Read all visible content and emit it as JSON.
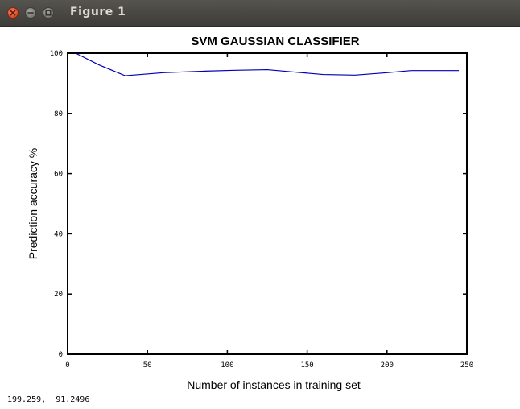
{
  "window": {
    "title": "Figure 1",
    "controls": [
      "close-icon",
      "minimize-icon",
      "maximize-icon"
    ]
  },
  "status": {
    "coordinates": "199.259,  91.2496"
  },
  "colors": {
    "titlebar": "#3d3c38",
    "close_button": "#dd4a22",
    "line": "#0000b4"
  },
  "chart_data": {
    "type": "line",
    "title": "SVM GAUSSIAN CLASSIFIER",
    "xlabel": "Number of instances in training set",
    "ylabel": "Prediction accuracy %",
    "xlim": [
      0,
      250
    ],
    "ylim": [
      0,
      100
    ],
    "xticks": [
      0,
      50,
      100,
      150,
      200,
      250
    ],
    "yticks": [
      0,
      20,
      40,
      60,
      80,
      100
    ],
    "xtick_labels": [
      "0",
      "50",
      "100",
      "150",
      "200",
      "250"
    ],
    "ytick_labels": [
      "0",
      "20",
      "40",
      "60",
      "80",
      "100"
    ],
    "grid": false,
    "series": [
      {
        "x": [
          5,
          20,
          36,
          60,
          85,
          105,
          125,
          140,
          160,
          180,
          200,
          215,
          245
        ],
        "y": [
          100,
          96,
          92.5,
          93.5,
          94,
          94.3,
          94.5,
          93.8,
          92.9,
          92.7,
          93.5,
          94.2,
          94.2
        ]
      }
    ]
  }
}
